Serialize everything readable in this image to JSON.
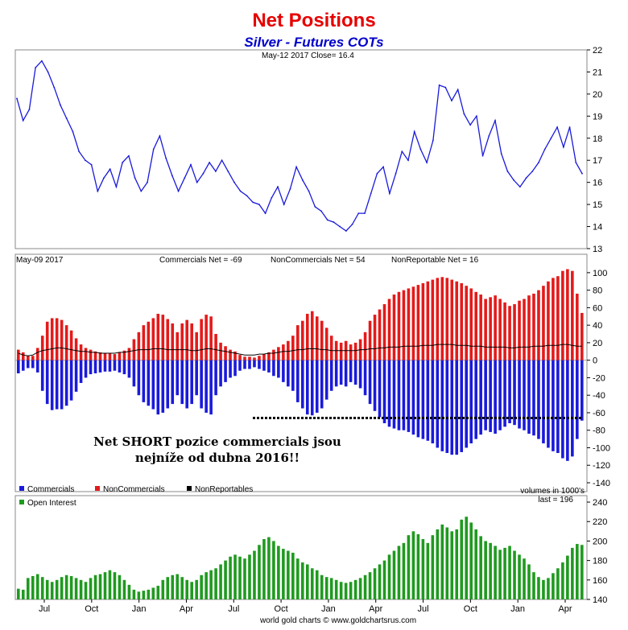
{
  "title": "Net Positions",
  "subtitle": "Silver - Futures COTs",
  "footer": "world gold charts © www.goldchartsrus.com",
  "colors": {
    "title": "#e60000",
    "subtitle": "#0000cc",
    "price": "#1a1adb",
    "commercials": "#1a1adb",
    "noncommercials": "#e41a1a",
    "nonreportables": "#000000",
    "open_interest": "#1f9a1f"
  },
  "annotation": {
    "line1": "Net SHORT pozice commercials jsou",
    "line2": "nejníže od dubna 2016!!"
  },
  "chart_data": [
    {
      "type": "line",
      "panel": "price",
      "header": "May-12  2017   Close= 16.4",
      "ylim": [
        13,
        22
      ],
      "yticks": [
        13,
        14,
        15,
        16,
        17,
        18,
        19,
        20,
        21,
        22
      ],
      "series": [
        {
          "values": [
            19.8,
            18.8,
            19.3,
            21.2,
            21.5,
            21.0,
            20.3,
            19.5,
            18.9,
            18.3,
            17.4,
            17.0,
            16.8,
            15.6,
            16.2,
            16.6,
            15.8,
            16.9,
            17.2,
            16.2,
            15.6,
            16.0,
            17.5,
            18.1,
            17.1,
            16.3,
            15.6,
            16.2,
            16.8,
            16.0,
            16.4,
            16.9,
            16.5,
            17.0,
            16.5,
            16.0,
            15.6,
            15.4,
            15.1,
            15.0,
            14.6,
            15.3,
            15.8,
            15.0,
            15.7,
            16.7,
            16.1,
            15.6,
            14.9,
            14.7,
            14.3,
            14.2,
            14.0,
            13.8,
            14.1,
            14.6,
            14.6,
            15.5,
            16.4,
            16.7,
            15.5,
            16.4,
            17.4,
            17.0,
            18.3,
            17.5,
            16.9,
            17.9,
            20.4,
            20.3,
            19.7,
            20.2,
            19.1,
            18.6,
            19.0,
            17.2,
            18.1,
            18.8,
            17.3,
            16.5,
            16.1,
            15.8,
            16.2,
            16.5,
            16.9,
            17.5,
            18.0,
            18.5,
            17.6,
            18.5,
            16.9,
            16.4
          ]
        }
      ],
      "xticks": [
        "Jul",
        "Oct",
        "Jan",
        "Apr",
        "Jul",
        "Oct",
        "Jan",
        "Apr",
        "Jul",
        "Oct",
        "Jan",
        "Apr"
      ]
    },
    {
      "type": "bar",
      "panel": "net_positions",
      "header_date": "May-09  2017",
      "header_labels": [
        "Commercials Net = -69",
        "NonCommercials Net = 54",
        "NonReportable Net = 16"
      ],
      "ylim": [
        -140,
        110
      ],
      "yticks": [
        -140,
        -120,
        -100,
        -80,
        -60,
        -40,
        -20,
        0,
        20,
        40,
        60,
        80,
        100
      ],
      "legend": [
        "Commercials",
        "NonCommercials",
        "NonReportables"
      ],
      "units_note": "volumes in 1000's",
      "series": [
        {
          "name": "Commercials",
          "values": [
            -15,
            -12,
            -9,
            -9,
            -14,
            -35,
            -50,
            -57,
            -56,
            -56,
            -52,
            -46,
            -36,
            -26,
            -20,
            -16,
            -15,
            -14,
            -13,
            -13,
            -12,
            -14,
            -16,
            -20,
            -30,
            -40,
            -48,
            -52,
            -56,
            -62,
            -60,
            -55,
            -50,
            -40,
            -50,
            -55,
            -50,
            -40,
            -55,
            -60,
            -62,
            -40,
            -30,
            -25,
            -20,
            -18,
            -12,
            -10,
            -10,
            -8,
            -10,
            -12,
            -14,
            -18,
            -20,
            -25,
            -30,
            -35,
            -48,
            -55,
            -62,
            -63,
            -60,
            -55,
            -45,
            -35,
            -30,
            -28,
            -30,
            -25,
            -28,
            -32,
            -40,
            -50,
            -58,
            -65,
            -72,
            -76,
            -78,
            -80,
            -80,
            -82,
            -85,
            -88,
            -90,
            -92,
            -95,
            -100,
            -104,
            -106,
            -108,
            -108,
            -105,
            -100,
            -95,
            -90,
            -85,
            -80,
            -82,
            -84,
            -80,
            -76,
            -72,
            -74,
            -78,
            -80,
            -84,
            -86,
            -90,
            -95,
            -100,
            -104,
            -106,
            -112,
            -115,
            -110,
            -90,
            -69
          ]
        },
        {
          "name": "NonCommercials",
          "values": [
            12,
            9,
            5,
            5,
            14,
            28,
            44,
            48,
            48,
            46,
            40,
            34,
            25,
            18,
            14,
            12,
            10,
            9,
            8,
            8,
            7,
            9,
            11,
            14,
            24,
            32,
            40,
            44,
            48,
            53,
            52,
            47,
            42,
            32,
            42,
            46,
            42,
            32,
            47,
            52,
            50,
            30,
            20,
            16,
            12,
            10,
            6,
            4,
            4,
            3,
            5,
            7,
            9,
            12,
            15,
            18,
            22,
            28,
            40,
            45,
            53,
            56,
            50,
            45,
            37,
            28,
            22,
            20,
            22,
            18,
            20,
            24,
            32,
            45,
            52,
            58,
            64,
            70,
            75,
            78,
            80,
            82,
            84,
            86,
            88,
            90,
            92,
            94,
            95,
            94,
            92,
            90,
            88,
            85,
            82,
            78,
            75,
            70,
            72,
            74,
            70,
            66,
            62,
            64,
            68,
            70,
            74,
            76,
            80,
            85,
            90,
            94,
            96,
            102,
            104,
            102,
            76,
            54
          ]
        },
        {
          "name": "NonReportables",
          "values": [
            8,
            6,
            5,
            6,
            9,
            11,
            12,
            13,
            14,
            14,
            13,
            12,
            11,
            10,
            10,
            9,
            9,
            8,
            8,
            8,
            8,
            9,
            9,
            10,
            11,
            12,
            12,
            12,
            13,
            13,
            13,
            12,
            12,
            12,
            12,
            12,
            11,
            11,
            12,
            13,
            13,
            12,
            11,
            10,
            9,
            8,
            7,
            6,
            6,
            6,
            7,
            7,
            8,
            8,
            9,
            10,
            10,
            11,
            12,
            12,
            13,
            13,
            13,
            12,
            12,
            11,
            11,
            11,
            11,
            11,
            11,
            12,
            12,
            13,
            13,
            14,
            14,
            15,
            15,
            15,
            16,
            16,
            16,
            16,
            17,
            17,
            17,
            18,
            18,
            18,
            18,
            17,
            17,
            17,
            16,
            16,
            16,
            15,
            15,
            15,
            15,
            15,
            14,
            14,
            15,
            15,
            15,
            16,
            16,
            16,
            17,
            17,
            17,
            18,
            18,
            17,
            16,
            16
          ]
        }
      ]
    },
    {
      "type": "bar",
      "panel": "open_interest",
      "legend": [
        "Open Interest"
      ],
      "last_label": "last = 196",
      "ylim": [
        140,
        245
      ],
      "yticks": [
        140,
        160,
        180,
        200,
        220,
        240
      ],
      "series": [
        {
          "name": "Open Interest",
          "values": [
            151,
            150,
            162,
            164,
            166,
            163,
            160,
            158,
            160,
            163,
            165,
            164,
            162,
            160,
            158,
            162,
            165,
            166,
            168,
            170,
            168,
            165,
            160,
            155,
            150,
            148,
            149,
            150,
            152,
            154,
            160,
            163,
            165,
            166,
            163,
            160,
            158,
            160,
            165,
            168,
            170,
            172,
            176,
            180,
            184,
            186,
            184,
            182,
            186,
            190,
            196,
            202,
            204,
            200,
            195,
            192,
            190,
            188,
            182,
            178,
            176,
            172,
            170,
            165,
            163,
            162,
            160,
            158,
            157,
            158,
            160,
            162,
            165,
            168,
            172,
            176,
            180,
            186,
            190,
            195,
            198,
            206,
            210,
            207,
            202,
            198,
            206,
            212,
            217,
            214,
            210,
            212,
            222,
            225,
            219,
            212,
            205,
            200,
            198,
            195,
            191,
            193,
            195,
            190,
            186,
            182,
            176,
            168,
            163,
            160,
            162,
            167,
            172,
            178,
            185,
            193,
            197,
            196
          ]
        }
      ]
    }
  ]
}
